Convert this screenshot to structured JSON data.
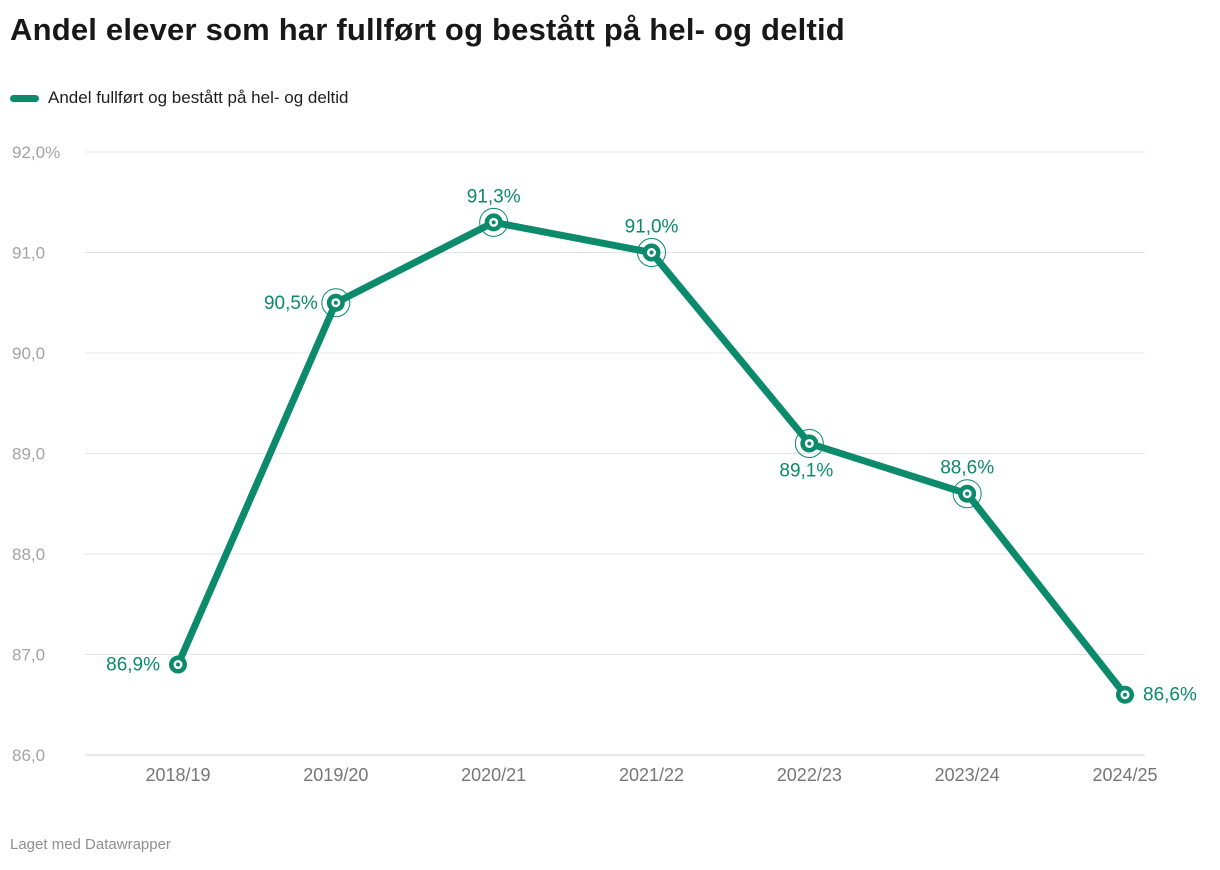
{
  "header": {
    "title": "Andel elever som har fullført og bestått på hel- og deltid",
    "legend_label": "Andel fullført og bestått på hel- og deltid"
  },
  "footer": {
    "credit": "Laget med Datawrapper"
  },
  "colors": {
    "accent": "#0b8a6c",
    "grid": "#e4e4e4",
    "baseline": "#d2d2d2",
    "y_tick_text": "#a3a3a3",
    "x_tick_text": "#767676",
    "title_text": "#181818",
    "footer_text": "#8f8f8f"
  },
  "chart_data": {
    "type": "line",
    "title": "Andel elever som har fullført og bestått på hel- og deltid",
    "categories": [
      "2018/19",
      "2019/20",
      "2020/21",
      "2021/22",
      "2022/23",
      "2023/24",
      "2024/25"
    ],
    "series": [
      {
        "name": "Andel fullført og bestått på hel- og deltid",
        "values": [
          86.9,
          90.5,
          91.3,
          91.0,
          89.1,
          88.6,
          86.6
        ]
      }
    ],
    "value_labels": [
      "86,9%",
      "90,5%",
      "91,3%",
      "91,0%",
      "89,1%",
      "88,6%",
      "86,6%"
    ],
    "label_positions": [
      "left",
      "left",
      "top",
      "top",
      "bottom",
      "top",
      "right"
    ],
    "point_halo": [
      false,
      true,
      true,
      true,
      true,
      true,
      false
    ],
    "y_ticks": [
      {
        "value": 92.0,
        "label": "92,0%"
      },
      {
        "value": 91.0,
        "label": "91,0"
      },
      {
        "value": 90.0,
        "label": "90,0"
      },
      {
        "value": 89.0,
        "label": "89,0"
      },
      {
        "value": 88.0,
        "label": "88,0"
      },
      {
        "value": 87.0,
        "label": "87,0"
      },
      {
        "value": 86.0,
        "label": "86,0"
      }
    ],
    "ylim": [
      86.0,
      92.0
    ],
    "grid": true,
    "legend_position": "top-left"
  }
}
